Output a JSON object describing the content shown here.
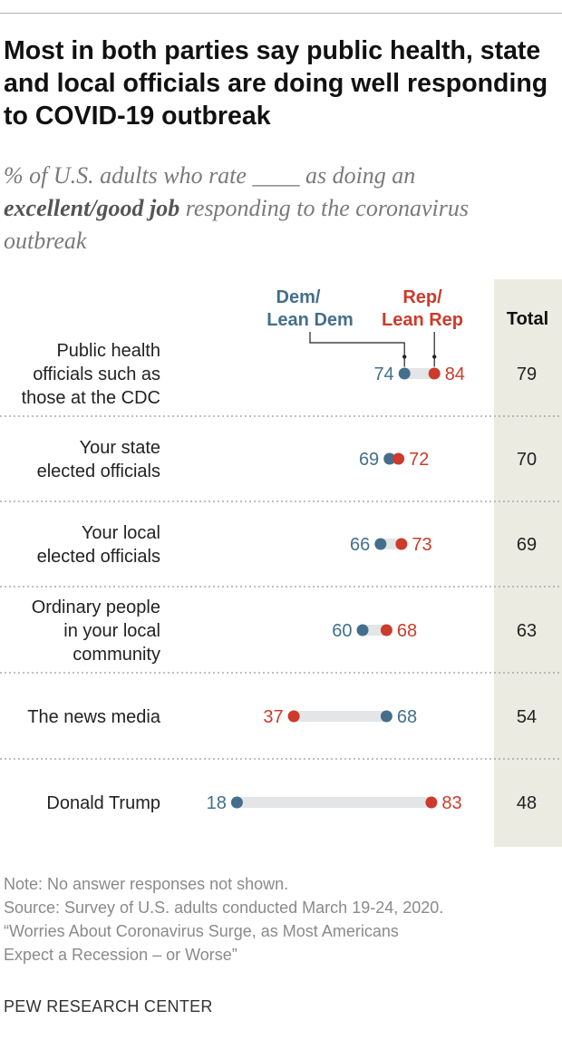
{
  "title": "Most in both parties say public health, state and local officials are doing well responding to COVID-19 outbreak",
  "subtitle": {
    "pre": "% of U.S. adults who rate ",
    "blank": "____",
    "mid": " as doing an",
    "bold": "excellent/good job",
    "post": " responding to the coronavirus outbreak"
  },
  "colors": {
    "dem": "#436f8c",
    "rep": "#cc3b2b",
    "bar": "#e3e5e7",
    "total_bg": "#ecebe2"
  },
  "chart_data": {
    "type": "dot-plot",
    "series_labels": {
      "dem": [
        "Dem/",
        "Lean Dem"
      ],
      "rep": [
        "Rep/",
        "Lean Rep"
      ],
      "total": "Total"
    },
    "xlim": [
      0,
      100
    ],
    "rows": [
      {
        "label": [
          "Public health",
          "officials such as",
          "those at the CDC"
        ],
        "dem": 74,
        "rep": 84,
        "total": 79
      },
      {
        "label": [
          "Your state",
          "elected officials"
        ],
        "dem": 69,
        "rep": 72,
        "total": 70
      },
      {
        "label": [
          "Your local",
          "elected officials"
        ],
        "dem": 66,
        "rep": 73,
        "total": 69
      },
      {
        "label": [
          "Ordinary people",
          "in your local",
          "community"
        ],
        "dem": 60,
        "rep": 68,
        "total": 63
      },
      {
        "label": [
          "The news media"
        ],
        "dem": 68,
        "rep": 37,
        "total": 54
      },
      {
        "label": [
          "Donald Trump"
        ],
        "dem": 18,
        "rep": 83,
        "total": 48
      }
    ]
  },
  "notes": [
    "Note: No answer responses not shown.",
    "Source: Survey of U.S. adults conducted March 19-24, 2020.",
    "“Worries About Coronavirus Surge, as Most Americans",
    "Expect a Recession – or Worse”"
  ],
  "org": "PEW RESEARCH CENTER"
}
